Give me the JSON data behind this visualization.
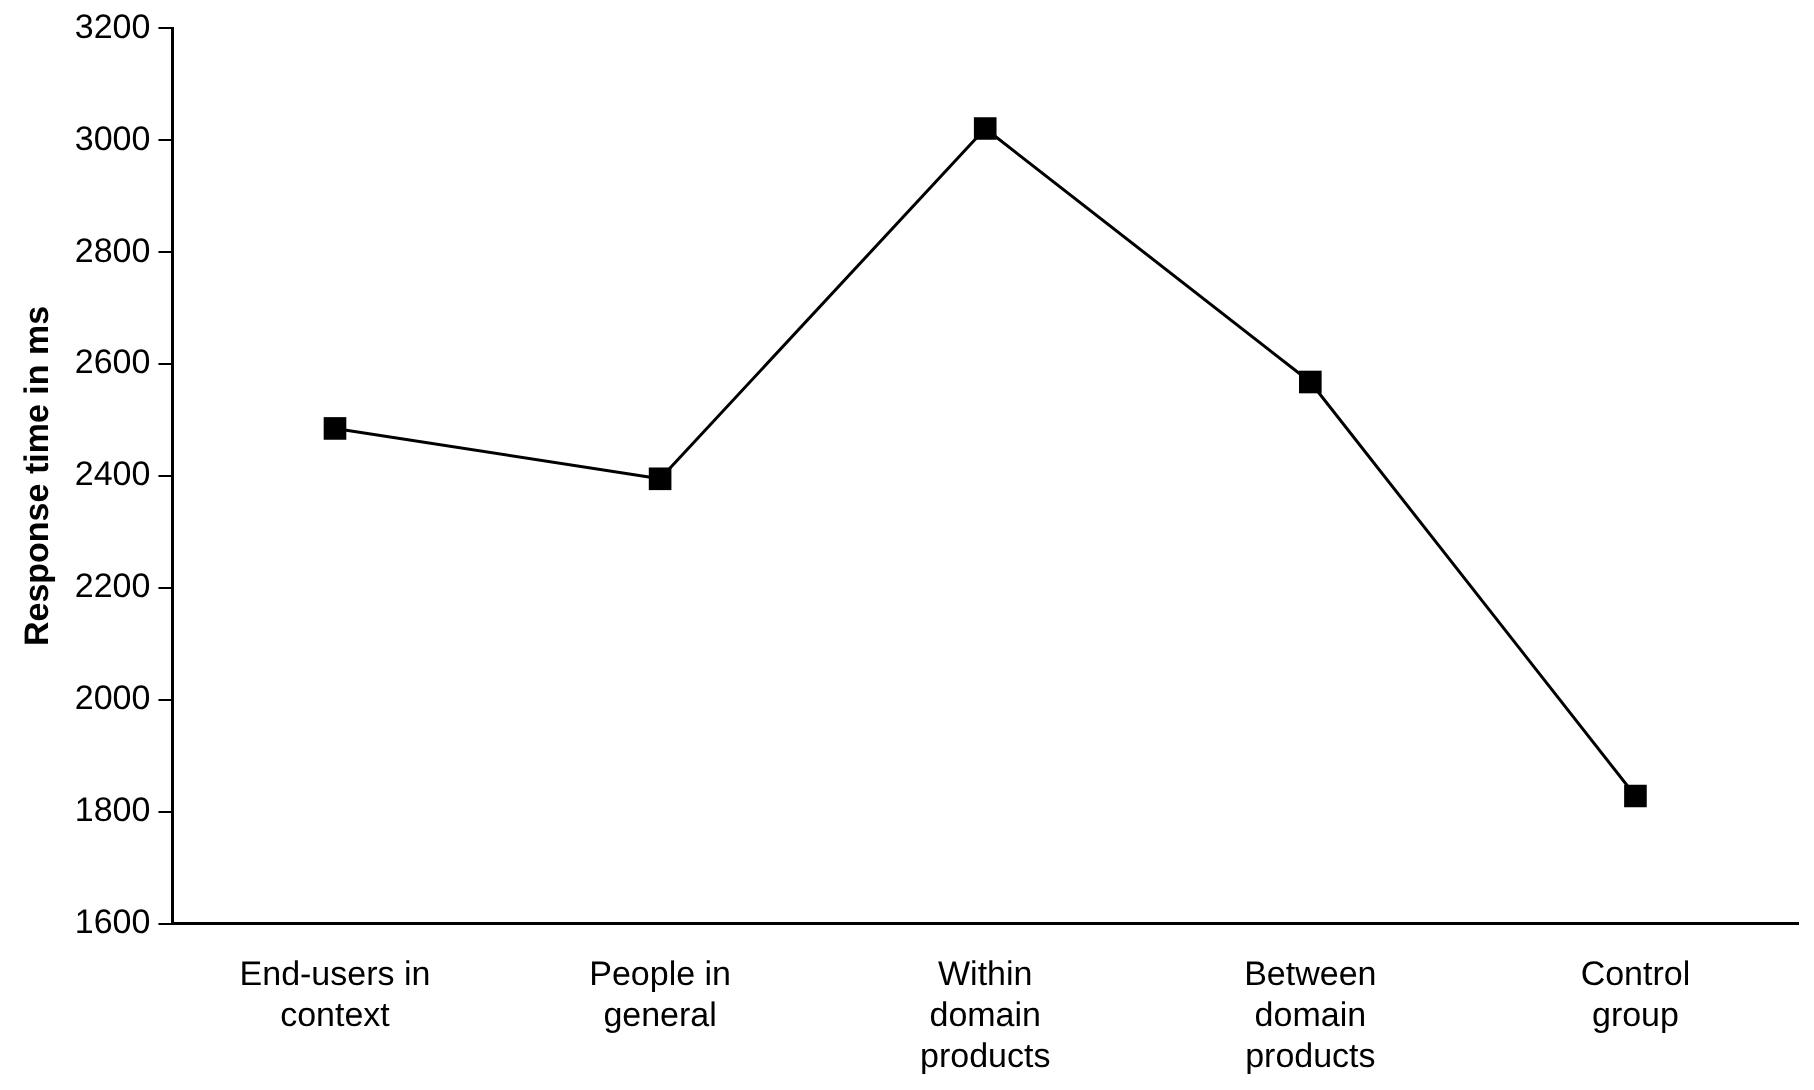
{
  "chart_data": {
    "type": "line",
    "ylabel": "Response time in ms",
    "categories": [
      "End-users in context",
      "People in general",
      "Within domain products",
      "Between domain products",
      "Control group"
    ],
    "series": [
      {
        "color": "#000000",
        "values": [
          2485,
          2395,
          3021,
          2568,
          1828
        ]
      }
    ],
    "ylim": [
      1600,
      3200
    ],
    "yticks": [
      1600,
      1800,
      2000,
      2200,
      2400,
      2600,
      2800,
      3000,
      3200
    ],
    "grid": false,
    "legend": false,
    "marker": "square",
    "line_style": "solid"
  }
}
